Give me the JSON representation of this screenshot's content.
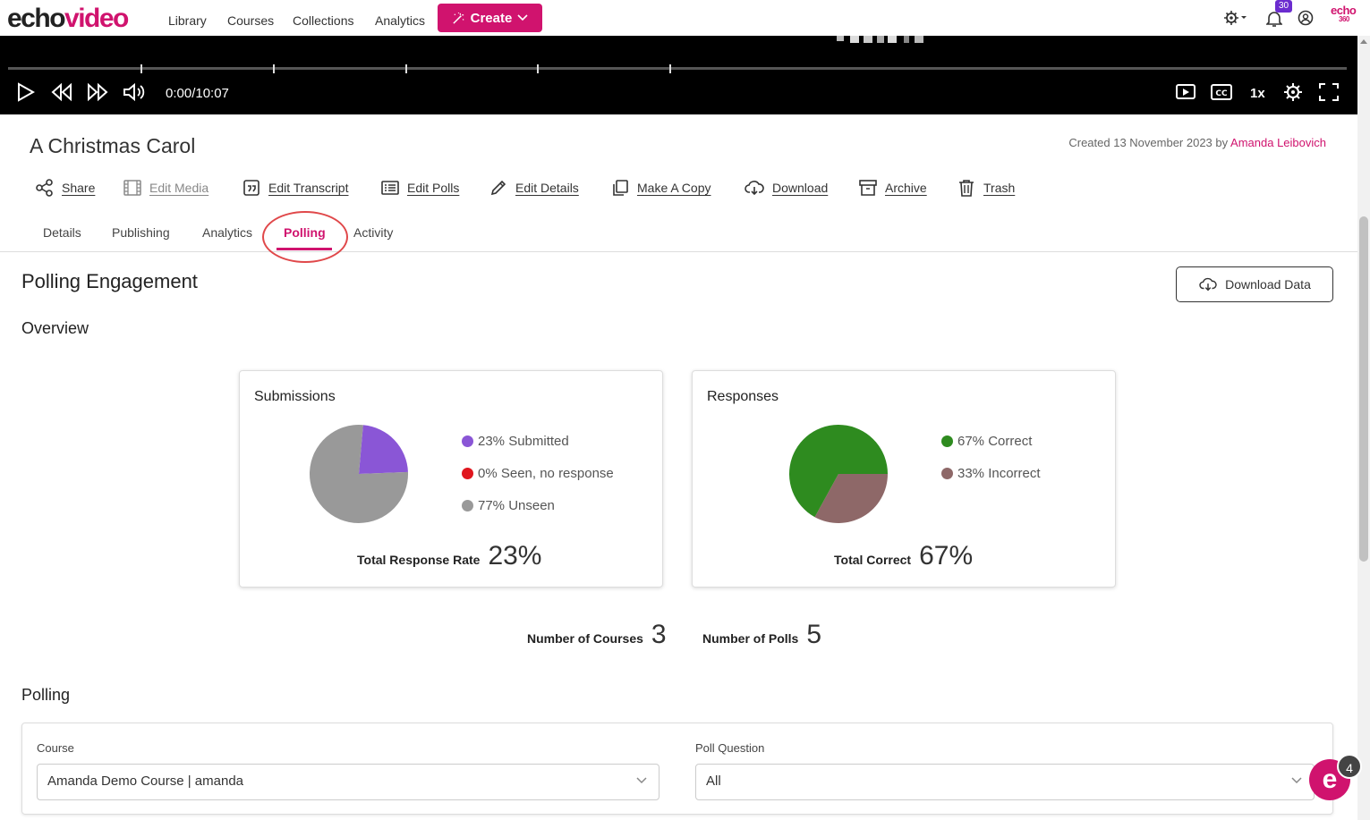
{
  "nav": {
    "logo_echo": "echo",
    "logo_video": "video",
    "links": [
      "Library",
      "Courses",
      "Collections",
      "Analytics"
    ],
    "create_label": "Create",
    "notification_count": "30",
    "brand_mark_top": "echo",
    "brand_mark_bottom": "360"
  },
  "player": {
    "time": "0:00/10:07",
    "speed": "1x"
  },
  "media": {
    "title": "A Christmas Carol",
    "created_prefix": "Created 13 November 2023 by ",
    "author": "Amanda Leibovich"
  },
  "actions": [
    "Share",
    "Edit Media",
    "Edit Transcript",
    "Edit Polls",
    "Edit Details",
    "Make A Copy",
    "Download",
    "Archive",
    "Trash"
  ],
  "tabs": [
    "Details",
    "Publishing",
    "Analytics",
    "Polling",
    "Activity"
  ],
  "active_tab": "Polling",
  "polling": {
    "heading": "Polling Engagement",
    "download_label": "Download Data",
    "overview_heading": "Overview",
    "submissions": {
      "title": "Submissions",
      "legend": [
        {
          "label": "23% Submitted",
          "color": "#8a56d6",
          "value": 23
        },
        {
          "label": "0% Seen, no response",
          "color": "#e0161e",
          "value": 0
        },
        {
          "label": "77% Unseen",
          "color": "#999999",
          "value": 77
        }
      ],
      "total_label": "Total Response Rate",
      "total_value": "23%"
    },
    "responses": {
      "title": "Responses",
      "legend": [
        {
          "label": "67% Correct",
          "color": "#2e8b1f",
          "value": 67
        },
        {
          "label": "33% Incorrect",
          "color": "#8e6868",
          "value": 33
        }
      ],
      "total_label": "Total Correct",
      "total_value": "67%"
    },
    "courses_label": "Number of Courses",
    "courses_value": "3",
    "polls_label": "Number of Polls",
    "polls_value": "5",
    "section_heading": "Polling",
    "course_label": "Course",
    "course_value": "Amanda Demo Course | amanda",
    "question_label": "Poll Question",
    "question_value": "All"
  },
  "chat_badge": "4",
  "chat_letter": "e",
  "colors": {
    "accent": "#d0136e",
    "annotation": "#e0484a"
  }
}
